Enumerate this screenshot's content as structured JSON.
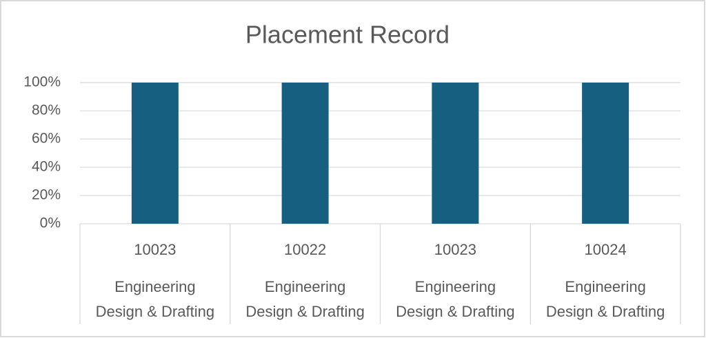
{
  "chart_data": {
    "type": "bar",
    "title": "Placement Record",
    "categories": [
      "10023",
      "10022",
      "10023",
      "10024"
    ],
    "subcategories": [
      "Engineering\nDesign & Drafting",
      "Engineering\nDesign & Drafting",
      "Engineering\nDesign & Drafting",
      "Engineering\nDesign & Drafting"
    ],
    "values": [
      100,
      100,
      100,
      100
    ],
    "color": "#175f80",
    "ylim": [
      0,
      100
    ],
    "yticks": [
      {
        "value": 0,
        "label": "0%"
      },
      {
        "value": 20,
        "label": "20%"
      },
      {
        "value": 40,
        "label": "40%"
      },
      {
        "value": 60,
        "label": "60%"
      },
      {
        "value": 80,
        "label": "80%"
      },
      {
        "value": 100,
        "label": "100%"
      }
    ],
    "grid": true
  }
}
